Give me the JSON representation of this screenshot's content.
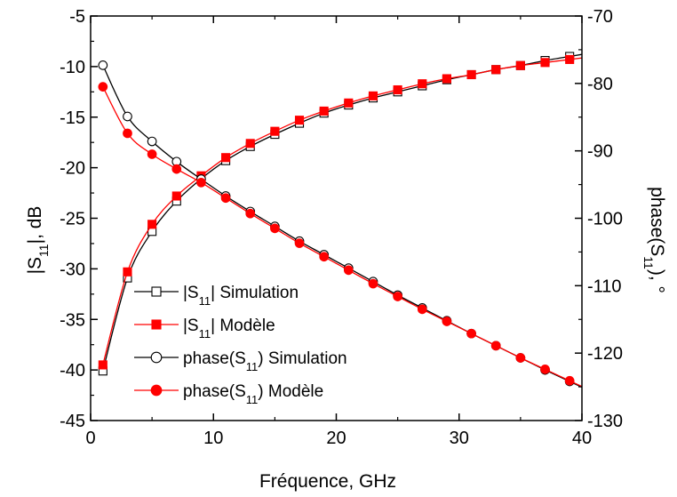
{
  "chart_data": {
    "type": "line",
    "title": "",
    "xlabel": "Fréquence, GHz",
    "ylabel_left": {
      "main": "|S",
      "sub": "11",
      "suffix": "|, dB"
    },
    "ylabel_right": {
      "main": "phase(S",
      "sub": "11",
      "suffix": "), °"
    },
    "xlim": [
      0,
      40
    ],
    "ylim_left": [
      -45,
      -5
    ],
    "ylim_right": [
      -130,
      -70
    ],
    "x_ticks": [
      "0",
      "10",
      "20",
      "30",
      "40"
    ],
    "y_left_ticks": [
      "-45",
      "-40",
      "-35",
      "-30",
      "-25",
      "-20",
      "-15",
      "-10",
      "-5"
    ],
    "y_right_ticks": [
      "-130",
      "-120",
      "-110",
      "-100",
      "-90",
      "-80",
      "-70"
    ],
    "grid": false,
    "legend_position": "bottom-left",
    "series": [
      {
        "name": {
          "pre": "|S",
          "sub": "11",
          "post": "| Simulation"
        },
        "axis": "left",
        "color": "#000000",
        "marker": "open-square",
        "x": [
          1,
          3,
          5,
          7,
          9,
          11,
          13,
          15,
          17,
          19,
          21,
          23,
          25,
          27,
          29,
          31,
          33,
          35,
          37,
          39
        ],
        "y": [
          -40.1,
          -30.9,
          -26.3,
          -23.3,
          -21.1,
          -19.3,
          -17.9,
          -16.7,
          -15.6,
          -14.6,
          -13.8,
          -13.1,
          -12.5,
          -11.9,
          -11.3,
          -10.8,
          -10.3,
          -9.9,
          -9.4,
          -9.0
        ]
      },
      {
        "name": {
          "pre": "|S",
          "sub": "11",
          "post": "| Modèle"
        },
        "axis": "left",
        "color": "#ff0000",
        "marker": "filled-square",
        "x": [
          1,
          3,
          5,
          7,
          9,
          11,
          13,
          15,
          17,
          19,
          21,
          23,
          25,
          27,
          29,
          31,
          33,
          35,
          37,
          39
        ],
        "y": [
          -39.5,
          -30.3,
          -25.6,
          -22.8,
          -20.8,
          -19.0,
          -17.6,
          -16.4,
          -15.3,
          -14.4,
          -13.6,
          -12.9,
          -12.3,
          -11.7,
          -11.2,
          -10.8,
          -10.3,
          -9.9,
          -9.6,
          -9.3
        ]
      },
      {
        "name": {
          "pre": "phase(S",
          "sub": "11",
          "post": ") Simulation"
        },
        "axis": "right",
        "color": "#000000",
        "marker": "open-circle",
        "x": [
          1,
          3,
          5,
          7,
          9,
          11,
          13,
          15,
          17,
          19,
          21,
          23,
          25,
          27,
          29,
          31,
          33,
          35,
          37,
          39
        ],
        "y": [
          -77.3,
          -84.9,
          -88.6,
          -91.6,
          -94.2,
          -96.7,
          -99.0,
          -101.2,
          -103.4,
          -105.4,
          -107.4,
          -109.4,
          -111.4,
          -113.3,
          -115.2,
          -117.1,
          -118.9,
          -120.7,
          -122.5,
          -124.2
        ]
      },
      {
        "name": {
          "pre": "phase(S",
          "sub": "11",
          "post": ") Modèle"
        },
        "axis": "right",
        "color": "#ff0000",
        "marker": "filled-circle",
        "x": [
          1,
          3,
          5,
          7,
          9,
          11,
          13,
          15,
          17,
          19,
          21,
          23,
          25,
          27,
          29,
          31,
          33,
          35,
          37,
          39
        ],
        "y": [
          -80.5,
          -87.4,
          -90.5,
          -92.7,
          -94.7,
          -97.0,
          -99.3,
          -101.5,
          -103.7,
          -105.7,
          -107.7,
          -109.7,
          -111.6,
          -113.5,
          -115.3,
          -117.1,
          -118.9,
          -120.7,
          -122.4,
          -124.1
        ]
      }
    ]
  }
}
